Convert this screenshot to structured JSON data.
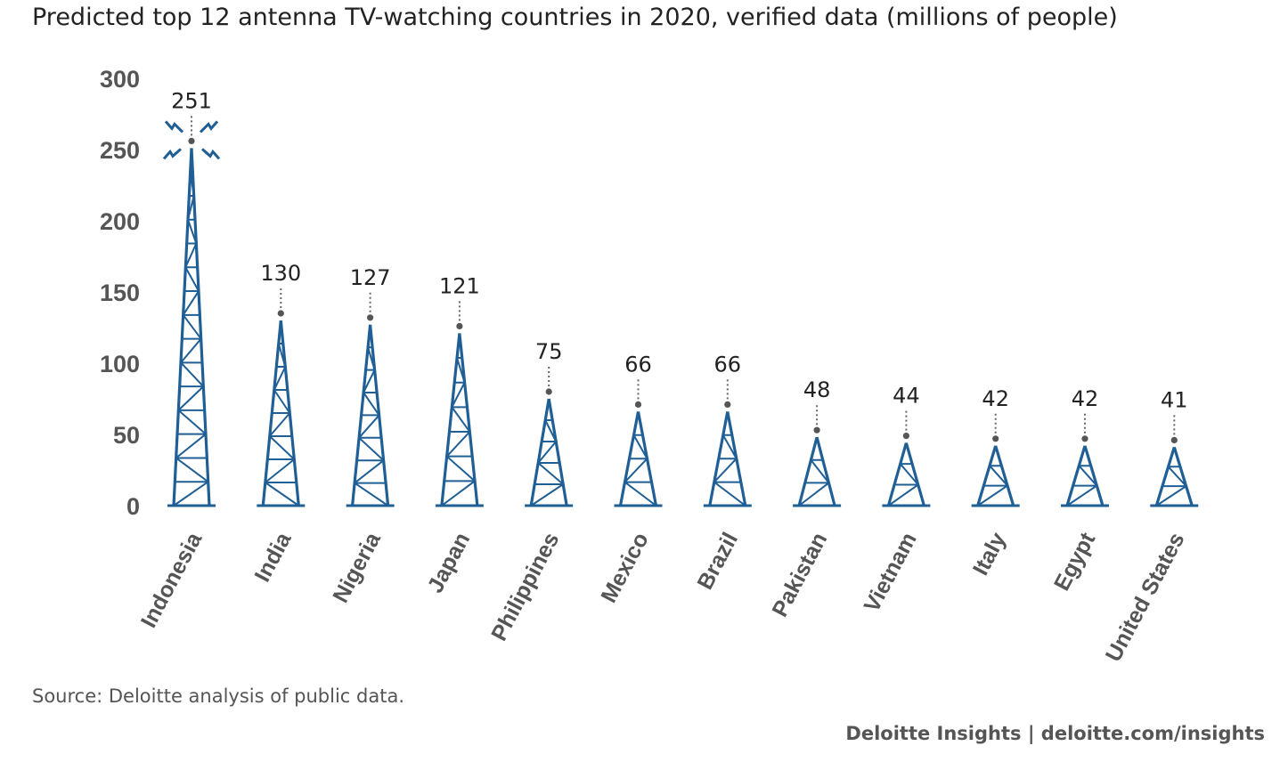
{
  "footer": {
    "source": "Source: Deloitte analysis of public data.",
    "brand": "Deloitte Insights | deloitte.com/insights"
  },
  "colors": {
    "tower": "#1f5f95",
    "tick": "#555555",
    "leader": "#666666"
  },
  "chart_data": {
    "type": "bar",
    "title": "Predicted top 12 antenna TV-watching countries in 2020, verified data (millions of people)",
    "xlabel": "",
    "ylabel": "",
    "ylim": [
      0,
      300
    ],
    "yticks": [
      0,
      50,
      100,
      150,
      200,
      250,
      300
    ],
    "grid": false,
    "legend": "none",
    "categories": [
      "Indonesia",
      "India",
      "Nigeria",
      "Japan",
      "Philippines",
      "Mexico",
      "Brazil",
      "Pakistan",
      "Vietnam",
      "Italy",
      "Egypt",
      "United States"
    ],
    "values": [
      251,
      130,
      127,
      121,
      75,
      66,
      66,
      48,
      44,
      42,
      42,
      41
    ],
    "highlight": "Indonesia"
  }
}
